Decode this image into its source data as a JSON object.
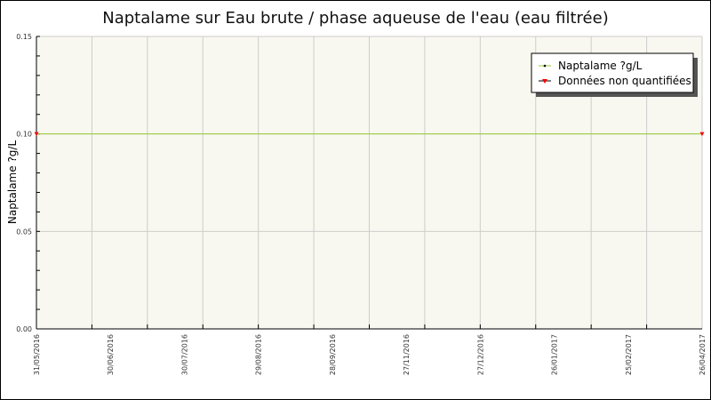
{
  "chart_data": {
    "type": "line",
    "title": "Naptalame sur Eau brute / phase aqueuse de l'eau (eau filtrée)",
    "xlabel": "",
    "ylabel": "Naptalame ?g/L",
    "ylim": [
      0,
      0.15
    ],
    "yticks": [
      "0.00",
      "0.05",
      "0.10",
      "0.15"
    ],
    "xtick_labels": [
      "31/05/2016",
      "30/06/2016",
      "30/07/2016",
      "29/08/2016",
      "28/09/2016",
      "27/11/2016",
      "27/12/2016",
      "26/01/2017",
      "25/02/2017",
      "26/04/2017"
    ],
    "grid": true,
    "legend_position": "top-right",
    "series": [
      {
        "name": "Naptalame ?g/L",
        "color": "#99cc33",
        "x": [
          "31/05/2016",
          "26/04/2017"
        ],
        "y": [
          0.1,
          0.1
        ]
      },
      {
        "name": "Données non quantifiées",
        "color": "#ff0000",
        "x": [
          "31/05/2016",
          "26/04/2017"
        ],
        "y": [
          0.1,
          0.1
        ]
      }
    ],
    "plot_background": "#f8f8f0"
  }
}
